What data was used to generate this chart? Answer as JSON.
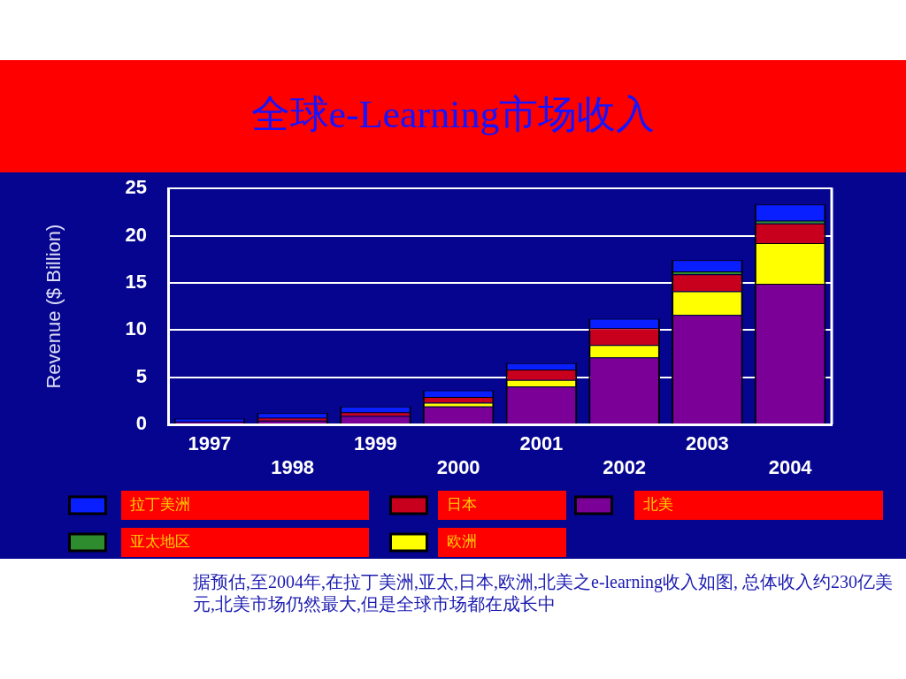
{
  "chart_data": {
    "type": "bar",
    "title": "全球e-Learning市场收入",
    "ylabel": "Revenue ($ Billion)",
    "categories": [
      "1997",
      "1998",
      "1999",
      "2000",
      "2001",
      "2002",
      "2003",
      "2004"
    ],
    "series": [
      {
        "name": "北美",
        "color": "#7a0098",
        "values": [
          0.3,
          0.4,
          0.9,
          1.9,
          4.0,
          7.1,
          11.6,
          14.9
        ]
      },
      {
        "name": "欧洲",
        "color": "#ffff00",
        "values": [
          null,
          null,
          null,
          0.4,
          0.7,
          1.3,
          2.5,
          4.3
        ]
      },
      {
        "name": "日本",
        "color": "#c8001e",
        "values": [
          null,
          0.3,
          0.4,
          0.6,
          1.1,
          1.8,
          1.8,
          2.1
        ]
      },
      {
        "name": "亚太地区",
        "color": "#2e8b2e",
        "values": [
          null,
          null,
          null,
          null,
          null,
          null,
          0.3,
          0.3
        ]
      },
      {
        "name": "拉丁美洲",
        "color": "#0a1fff",
        "values": [
          0.3,
          0.5,
          0.6,
          0.7,
          0.7,
          1.0,
          1.2,
          1.7
        ]
      }
    ],
    "stacked": true,
    "ylim": [
      0,
      25
    ],
    "yticks": [
      0,
      5,
      10,
      15,
      20,
      25
    ],
    "grid": "y",
    "legend": "bottom",
    "annotations": [
      "据预估,至2004年,在拉丁美洲,亚太,日本,欧洲,北美之e-learning收入如图, 总体收入约230亿美元,北美市场仍然最大,但是全球市场都在成长中"
    ]
  }
}
